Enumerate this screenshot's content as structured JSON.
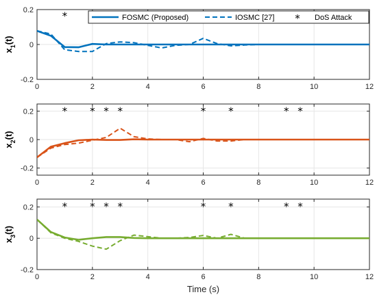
{
  "chart_data": [
    {
      "type": "line",
      "ylabel_main": "x",
      "ylabel_sub": "1",
      "ylabel_tail": "(t)",
      "xlim": [
        0,
        12
      ],
      "ylim": [
        -0.2,
        0.2
      ],
      "xticks": [
        "0",
        "2",
        "4",
        "6",
        "8",
        "10",
        "12"
      ],
      "yticks": [
        "-0.2",
        "0",
        "0.2"
      ],
      "color": "#0072BD",
      "legend": {
        "position": "top-right",
        "entries": [
          "FOSMC (Proposed)",
          "IOSMC [27]",
          "DoS Attack"
        ]
      },
      "series": [
        {
          "name": "FOSMC (Proposed)",
          "style": "solid",
          "x": [
            0,
            0.5,
            1.0,
            1.5,
            2.0,
            2.5,
            3.0,
            4.0,
            6.0,
            12.0
          ],
          "y": [
            0.078,
            0.05,
            -0.015,
            -0.016,
            0.003,
            0.0,
            0.0,
            0.0,
            0.0,
            0.0
          ]
        },
        {
          "name": "IOSMC [27]",
          "style": "dashed",
          "x": [
            0,
            0.5,
            1.0,
            1.5,
            2.0,
            2.5,
            3.0,
            3.5,
            4.0,
            4.5,
            5.0,
            5.5,
            6.0,
            6.5,
            7.0,
            7.5,
            8.0
          ],
          "y": [
            0.078,
            0.06,
            -0.03,
            -0.04,
            -0.04,
            0.005,
            0.015,
            0.01,
            -0.005,
            -0.02,
            -0.005,
            0.0,
            0.035,
            0.005,
            -0.008,
            -0.003,
            0.0
          ]
        }
      ],
      "attack_marker": "*",
      "attack_times": [
        1,
        2,
        2.5,
        3,
        6,
        7,
        9,
        9.5
      ],
      "attack_level": 0.17
    },
    {
      "type": "line",
      "ylabel_main": "x",
      "ylabel_sub": "2",
      "ylabel_tail": "(t)",
      "xlim": [
        0,
        12
      ],
      "ylim": [
        -0.25,
        0.25
      ],
      "xticks": [
        "0",
        "2",
        "4",
        "6",
        "8",
        "10",
        "12"
      ],
      "yticks": [
        "-0.2",
        "0",
        "0.2"
      ],
      "color": "#D95319",
      "series": [
        {
          "name": "FOSMC (Proposed)",
          "style": "solid",
          "x": [
            0,
            0.5,
            1.0,
            1.5,
            2.0,
            2.5,
            3.0,
            3.5,
            4.0,
            12.0
          ],
          "y": [
            -0.125,
            -0.05,
            -0.025,
            -0.005,
            0.0,
            -0.003,
            -0.003,
            0.002,
            0.0,
            0.0
          ]
        },
        {
          "name": "IOSMC [27]",
          "style": "dashed",
          "x": [
            0,
            0.5,
            1.0,
            1.5,
            2.0,
            2.5,
            3.0,
            3.5,
            4.0,
            4.5,
            5.0,
            5.5,
            6.0,
            6.5,
            7.0,
            7.5,
            8.0
          ],
          "y": [
            -0.125,
            -0.06,
            -0.035,
            -0.025,
            -0.005,
            0.015,
            0.08,
            0.02,
            0.005,
            0.0,
            0.0,
            -0.015,
            0.008,
            -0.01,
            -0.01,
            0.0,
            0.0
          ]
        }
      ],
      "attack_marker": "*",
      "attack_times": [
        1,
        2,
        2.5,
        3,
        6,
        7,
        9,
        9.5
      ],
      "attack_level": 0.21
    },
    {
      "type": "line",
      "ylabel_main": "x",
      "ylabel_sub": "3",
      "ylabel_tail": "(t)",
      "xlim": [
        0,
        12
      ],
      "ylim": [
        -0.2,
        0.25
      ],
      "xticks": [
        "0",
        "2",
        "4",
        "6",
        "8",
        "10",
        "12"
      ],
      "yticks": [
        "-0.2",
        "0",
        "0.2"
      ],
      "xlabel": "Time (s)",
      "color": "#77AC30",
      "series": [
        {
          "name": "FOSMC (Proposed)",
          "style": "solid",
          "x": [
            0,
            0.5,
            1.0,
            1.5,
            2.0,
            2.5,
            3.0,
            3.5,
            4.0,
            12.0
          ],
          "y": [
            0.12,
            0.04,
            0.005,
            -0.01,
            0.0,
            0.008,
            0.008,
            0.002,
            0.0,
            0.0
          ]
        },
        {
          "name": "IOSMC [27]",
          "style": "dashed",
          "x": [
            0,
            0.5,
            1.0,
            1.5,
            2.0,
            2.5,
            3.0,
            3.5,
            4.0,
            4.5,
            5.0,
            5.5,
            6.0,
            6.5,
            7.0,
            7.5,
            8.0
          ],
          "y": [
            0.12,
            0.035,
            0.0,
            -0.02,
            -0.05,
            -0.07,
            -0.015,
            0.02,
            0.01,
            0.0,
            0.0,
            0.005,
            0.018,
            0.0,
            0.025,
            0.0,
            0.0
          ]
        }
      ],
      "attack_marker": "*",
      "attack_times": [
        1,
        2,
        2.5,
        3,
        6,
        7,
        9,
        9.5
      ],
      "attack_level": 0.21
    }
  ]
}
